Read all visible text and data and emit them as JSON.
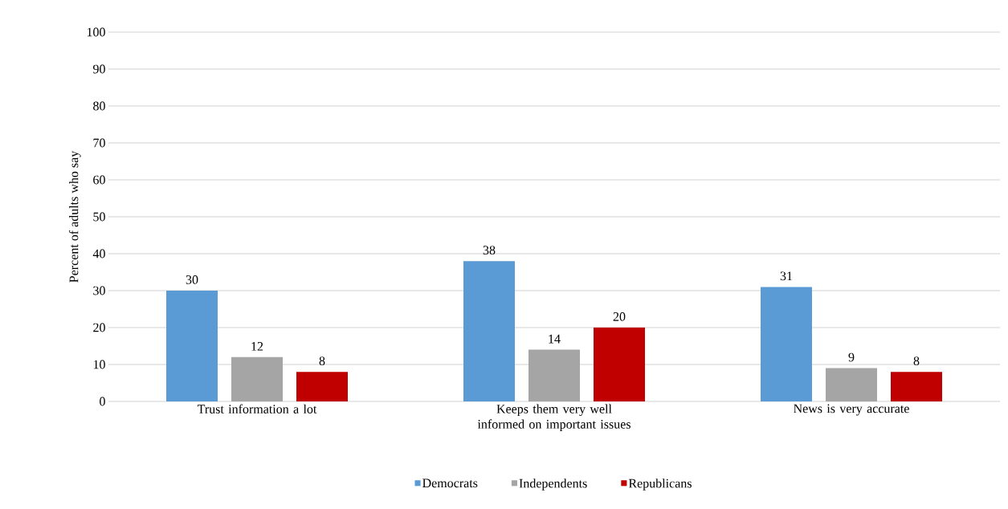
{
  "chart_data": {
    "type": "bar",
    "ylabel": "Percent of adults who say",
    "categories": [
      "Trust information a lot",
      "Keeps them very well informed on important issues",
      "News is very accurate"
    ],
    "series": [
      {
        "name": "Democrats",
        "color": "#5b9bd5",
        "values": [
          30,
          38,
          31
        ]
      },
      {
        "name": "Independents",
        "color": "#a5a5a5",
        "values": [
          12,
          14,
          9
        ]
      },
      {
        "name": "Republicans",
        "color": "#c00000",
        "values": [
          8,
          20,
          8
        ]
      }
    ],
    "ylim": [
      0,
      100
    ],
    "yticks": [
      0,
      10,
      20,
      30,
      40,
      50,
      60,
      70,
      80,
      90,
      100
    ],
    "grid": "y",
    "legend": "bottom",
    "data_labels": true
  }
}
